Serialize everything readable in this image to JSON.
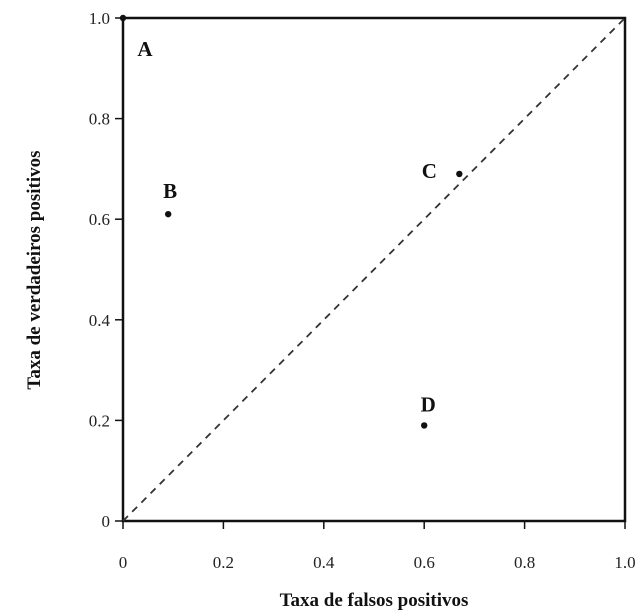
{
  "chart_data": {
    "type": "scatter",
    "title": "",
    "xlabel": "Taxa de falsos positivos",
    "ylabel": "Taxa de verdadeiros positivos",
    "xlim": [
      0,
      1
    ],
    "ylim": [
      0,
      1
    ],
    "xticks": [
      "0",
      "0.2",
      "0.4",
      "0.6",
      "0.8",
      "1.0"
    ],
    "yticks": [
      "0",
      "0.2",
      "0.4",
      "0.6",
      "0.8",
      "1.0"
    ],
    "grid": false,
    "points": [
      {
        "label": "A",
        "x": 0.0,
        "y": 1.0
      },
      {
        "label": "B",
        "x": 0.09,
        "y": 0.61
      },
      {
        "label": "C",
        "x": 0.67,
        "y": 0.69
      },
      {
        "label": "D",
        "x": 0.6,
        "y": 0.19
      }
    ],
    "reference_line": {
      "from": [
        0,
        0
      ],
      "to": [
        1,
        1
      ],
      "style": "dashed"
    }
  }
}
